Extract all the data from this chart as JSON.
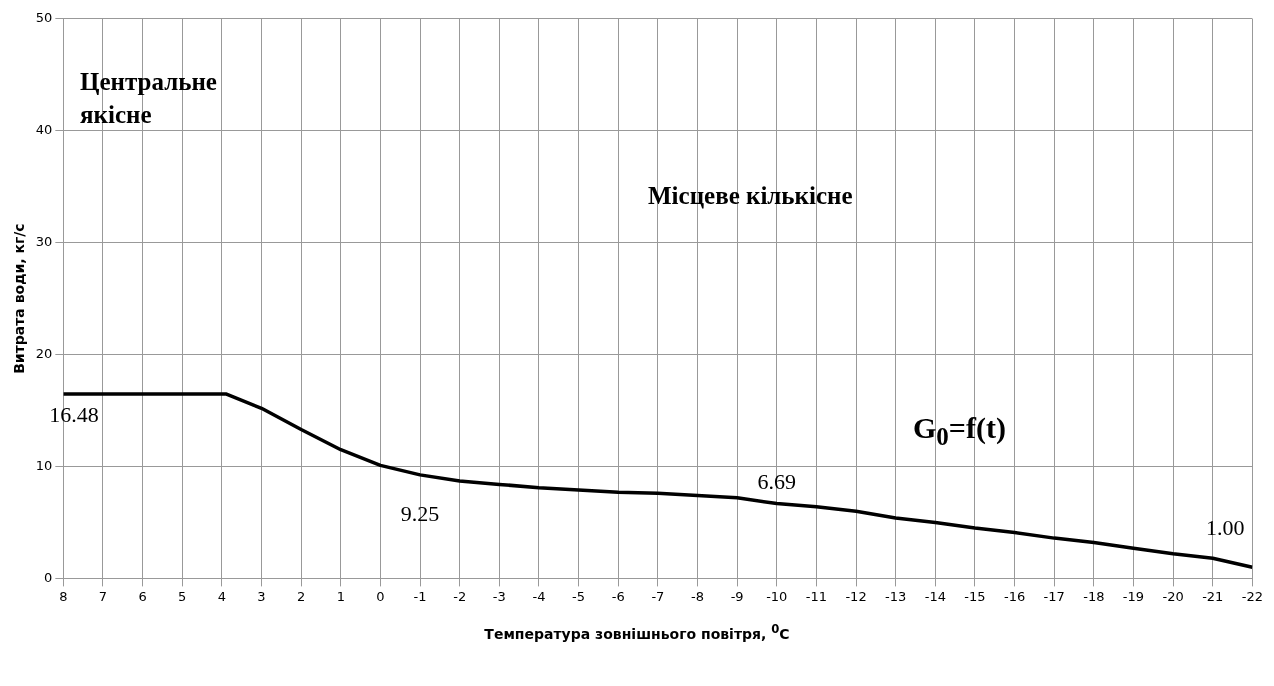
{
  "chart_data": {
    "type": "line",
    "xlabel": "Температура зовнішнього повітря, $^{0}$C",
    "ylabel": "Витрата води, кг/с",
    "x": [
      8,
      7,
      6,
      5,
      4,
      3.9,
      3,
      2,
      1,
      0,
      -1,
      -2,
      -3,
      -4,
      -5,
      -6,
      -7,
      -8,
      -9,
      -10,
      -11,
      -12,
      -13,
      -14,
      -15,
      -16,
      -17,
      -18,
      -19,
      -20,
      -21,
      -22
    ],
    "series": [
      {
        "color": "#000000",
        "values": [
          16.48,
          16.48,
          16.48,
          16.48,
          16.48,
          16.48,
          15.2,
          13.3,
          11.5,
          10.1,
          9.25,
          8.7,
          8.4,
          8.1,
          7.9,
          7.7,
          7.6,
          7.4,
          7.2,
          6.69,
          6.4,
          6.0,
          5.4,
          5.0,
          4.5,
          4.1,
          3.6,
          3.2,
          2.7,
          2.2,
          1.8,
          1.0
        ]
      }
    ],
    "xlim": [
      8,
      -22
    ],
    "xticks": [
      8,
      7,
      6,
      5,
      4,
      3,
      2,
      1,
      0,
      -1,
      -2,
      -3,
      -4,
      -5,
      -6,
      -7,
      -8,
      -9,
      -10,
      -11,
      -12,
      -13,
      -14,
      -15,
      -16,
      -17,
      -18,
      -19,
      -20,
      -21,
      -22
    ],
    "ylim": [
      0,
      50
    ],
    "yticks": [
      0,
      10,
      20,
      30,
      40,
      50
    ],
    "grid": true,
    "legend": false,
    "marker": "none",
    "line_style": "solid",
    "annotations": [
      {
        "text": "16.48",
        "x": 8,
        "y": 16.48
      },
      {
        "text": "9.25",
        "x": -1,
        "y": 9.25
      },
      {
        "text": "6.69",
        "x": -10,
        "y": 6.69
      },
      {
        "text": "1.00",
        "x": -22,
        "y": 1.0
      },
      "Центральне якісне",
      "Місцеве кількісне",
      "G$_{0}$=f(t)"
    ]
  }
}
